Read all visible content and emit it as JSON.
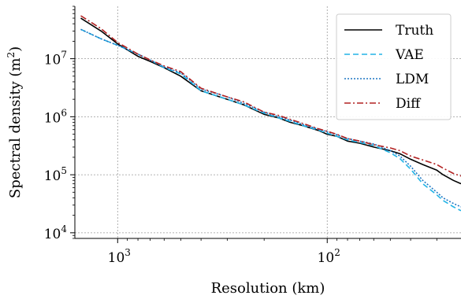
{
  "chart_data": {
    "type": "line",
    "title": "",
    "xlabel": "Resolution (km)",
    "ylabel": "Spectral density (m²)",
    "x_scale": "log",
    "y_scale": "log",
    "x_reversed": true,
    "xlim": [
      1600,
      23
    ],
    "ylim": [
      8000,
      80000000
    ],
    "x_ticks": [
      {
        "value": 1000,
        "base": "10",
        "exp": "3"
      },
      {
        "value": 100,
        "base": "10",
        "exp": "2"
      }
    ],
    "y_ticks": [
      {
        "value": 10000,
        "base": "10",
        "exp": "4"
      },
      {
        "value": 100000,
        "base": "10",
        "exp": "5"
      },
      {
        "value": 1000000,
        "base": "10",
        "exp": "6"
      },
      {
        "value": 10000000,
        "base": "10",
        "exp": "7"
      }
    ],
    "grid": true,
    "legend_position": "top-right",
    "x": [
      1500,
      1200,
      1000,
      800,
      700,
      600,
      500,
      400,
      300,
      250,
      200,
      170,
      150,
      130,
      110,
      100,
      90,
      80,
      70,
      60,
      50,
      45,
      40,
      35,
      30,
      28,
      25,
      23
    ],
    "series": [
      {
        "name": "Truth",
        "color": "#000000",
        "dash": "",
        "values": [
          50000000,
          30000000,
          18000000,
          11000000,
          9000000,
          7000000,
          5000000,
          2800000,
          2000000,
          1600000,
          1100000,
          950000,
          800000,
          700000,
          580000,
          500000,
          460000,
          380000,
          350000,
          300000,
          260000,
          230000,
          185000,
          150000,
          120000,
          100000,
          80000,
          70000
        ]
      },
      {
        "name": "VAE",
        "color": "#22b4e6",
        "dash": "7 4",
        "values": [
          32000000,
          22000000,
          17000000,
          12000000,
          9500000,
          7000000,
          5500000,
          2800000,
          2000000,
          1600000,
          1150000,
          950000,
          830000,
          700000,
          590000,
          520000,
          460000,
          400000,
          360000,
          320000,
          240000,
          190000,
          125000,
          70000,
          45000,
          36000,
          28000,
          24000
        ]
      },
      {
        "name": "LDM",
        "color": "#1f77c4",
        "dash": "2 2",
        "values": [
          32000000,
          22000000,
          17000000,
          12000000,
          9500000,
          7200000,
          5700000,
          3000000,
          2200000,
          1700000,
          1200000,
          1000000,
          870000,
          730000,
          610000,
          550000,
          490000,
          420000,
          380000,
          340000,
          260000,
          210000,
          140000,
          80000,
          50000,
          40000,
          32000,
          28000
        ]
      },
      {
        "name": "Diff",
        "color": "#b22222",
        "dash": "8 3 2 3",
        "values": [
          55000000,
          33000000,
          19000000,
          12000000,
          9500000,
          7500000,
          6000000,
          3100000,
          2200000,
          1800000,
          1200000,
          1050000,
          900000,
          760000,
          620000,
          560000,
          500000,
          420000,
          380000,
          330000,
          290000,
          260000,
          210000,
          180000,
          150000,
          130000,
          105000,
          95000
        ]
      }
    ]
  }
}
